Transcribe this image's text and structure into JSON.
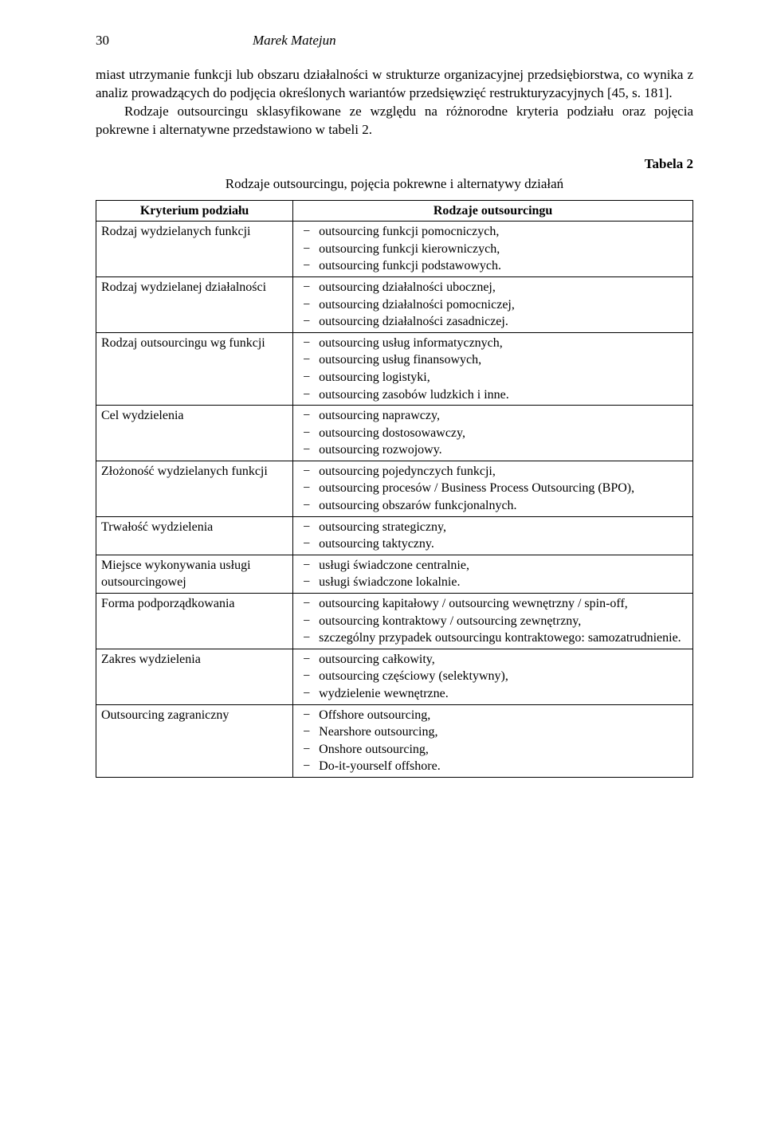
{
  "header": {
    "page_number": "30",
    "author": "Marek Matejun"
  },
  "paragraph": {
    "part1": "miast utrzymanie funkcji lub obszaru działalności w strukturze organizacyjnej przedsiębiorstwa, co wynika z analiz prowadzących do podjęcia określonych wariantów przedsięwzięć restrukturyzacyjnych [45, s. 181].",
    "part2": "Rodzaje outsourcingu sklasyfikowane ze względu na różnorodne kryteria podziału oraz pojęcia pokrewne i alternatywne przedstawiono w tabeli 2."
  },
  "table": {
    "label": "Tabela 2",
    "caption": "Rodzaje outsourcingu, pojęcia pokrewne i alternatywy działań",
    "header_left": "Kryterium podziału",
    "header_right": "Rodzaje outsourcingu",
    "rows": [
      {
        "criterion": "Rodzaj wydzielanych funkcji",
        "items": [
          "outsourcing funkcji pomocniczych,",
          "outsourcing funkcji kierowniczych,",
          "outsourcing funkcji podstawowych."
        ]
      },
      {
        "criterion": "Rodzaj wydzielanej działalności",
        "items": [
          "outsourcing działalności ubocznej,",
          "outsourcing działalności pomocniczej,",
          "outsourcing działalności zasadniczej."
        ]
      },
      {
        "criterion": "Rodzaj outsourcingu wg funkcji",
        "items": [
          "outsourcing usług informatycznych,",
          "outsourcing usług finansowych,",
          "outsourcing logistyki,",
          "outsourcing zasobów ludzkich i inne."
        ]
      },
      {
        "criterion": "Cel wydzielenia",
        "items": [
          "outsourcing naprawczy,",
          "outsourcing dostosowawczy,",
          "outsourcing rozwojowy."
        ]
      },
      {
        "criterion": "Złożoność wydzielanych funkcji",
        "items": [
          "outsourcing pojedynczych funkcji,",
          "outsourcing procesów / Business Process Outsourcing (BPO),",
          "outsourcing obszarów funkcjonalnych."
        ]
      },
      {
        "criterion": "Trwałość wydzielenia",
        "items": [
          "outsourcing strategiczny,",
          "outsourcing taktyczny."
        ]
      },
      {
        "criterion": "Miejsce wykonywania usługi outsourcingowej",
        "items": [
          "usługi świadczone centralnie,",
          "usługi świadczone lokalnie."
        ]
      },
      {
        "criterion": "Forma podporządkowania",
        "items": [
          "outsourcing kapitałowy / outsourcing wewnętrzny / spin-off,",
          "outsourcing kontraktowy / outsourcing zewnętrzny,",
          "szczególny przypadek outsourcingu kontraktowego: samozatrudnienie."
        ]
      },
      {
        "criterion": "Zakres wydzielenia",
        "items": [
          "outsourcing całkowity,",
          "outsourcing częściowy (selektywny),",
          "wydzielenie wewnętrzne."
        ]
      },
      {
        "criterion": "Outsourcing zagraniczny",
        "items": [
          "Offshore outsourcing,",
          "Nearshore outsourcing,",
          "Onshore outsourcing,",
          "Do-it-yourself offshore."
        ]
      }
    ]
  }
}
